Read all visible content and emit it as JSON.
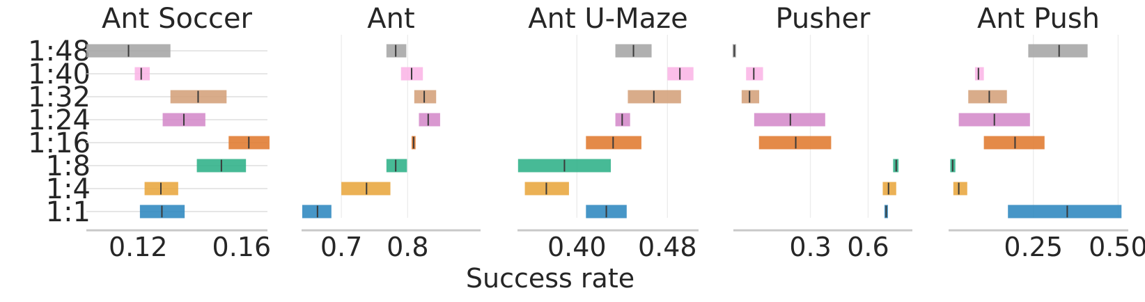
{
  "xlabel": "Success rate",
  "categories": [
    "1:48",
    "1:40",
    "1:32",
    "1:24",
    "1:16",
    "1:8",
    "1:4",
    "1:1"
  ],
  "colors": {
    "1:48": "#a5a5a5",
    "1:40": "#fbb5e6",
    "1:32": "#d4a07a",
    "1:24": "#d48ac9",
    "1:16": "#e07a2f",
    "1:8": "#2eb187",
    "1:4": "#e8a63d",
    "1:1": "#2e87bf"
  },
  "chart_data": [
    {
      "type": "interval",
      "title": "Ant Soccer",
      "xlim": [
        0.1,
        0.17
      ],
      "xticks": [
        0.12,
        0.16
      ],
      "xtick_labels": [
        "0.12",
        "0.16"
      ],
      "show_gridlines": "horizontal",
      "series": [
        {
          "name": "1:48",
          "low": 0.1,
          "mean": 0.1163,
          "high": 0.1325
        },
        {
          "name": "1:40",
          "low": 0.1187,
          "mean": 0.1212,
          "high": 0.1245
        },
        {
          "name": "1:32",
          "low": 0.1325,
          "mean": 0.1432,
          "high": 0.1542
        },
        {
          "name": "1:24",
          "low": 0.1295,
          "mean": 0.1377,
          "high": 0.146
        },
        {
          "name": "1:16",
          "low": 0.155,
          "mean": 0.1628,
          "high": 0.1708
        },
        {
          "name": "1:8",
          "low": 0.1427,
          "mean": 0.1522,
          "high": 0.1617
        },
        {
          "name": "1:4",
          "low": 0.1225,
          "mean": 0.1288,
          "high": 0.1355
        },
        {
          "name": "1:1",
          "low": 0.1207,
          "mean": 0.1292,
          "high": 0.138
        }
      ]
    },
    {
      "type": "interval",
      "title": "Ant",
      "xlim": [
        0.64,
        0.91
      ],
      "xticks": [
        0.7,
        0.8
      ],
      "xtick_labels": [
        "0.7",
        "0.8"
      ],
      "show_gridlines": "vertical",
      "series": [
        {
          "name": "1:48",
          "low": 0.768,
          "mean": 0.782,
          "high": 0.798
        },
        {
          "name": "1:40",
          "low": 0.79,
          "mean": 0.806,
          "high": 0.823
        },
        {
          "name": "1:32",
          "low": 0.81,
          "mean": 0.825,
          "high": 0.843
        },
        {
          "name": "1:24",
          "low": 0.817,
          "mean": 0.831,
          "high": 0.849
        },
        {
          "name": "1:16",
          "low": 0.806,
          "mean": 0.809,
          "high": 0.812
        },
        {
          "name": "1:8",
          "low": 0.768,
          "mean": 0.782,
          "high": 0.799
        },
        {
          "name": "1:4",
          "low": 0.7,
          "mean": 0.738,
          "high": 0.774
        },
        {
          "name": "1:1",
          "low": 0.641,
          "mean": 0.664,
          "high": 0.685
        }
      ]
    },
    {
      "type": "interval",
      "title": "Ant U-Maze",
      "xlim": [
        0.3475,
        0.5075
      ],
      "xticks": [
        0.4,
        0.48
      ],
      "xtick_labels": [
        "0.40",
        "0.48"
      ],
      "show_gridlines": "vertical",
      "series": [
        {
          "name": "1:48",
          "low": 0.434,
          "mean": 0.45,
          "high": 0.466
        },
        {
          "name": "1:40",
          "low": 0.48,
          "mean": 0.491,
          "high": 0.503
        },
        {
          "name": "1:32",
          "low": 0.445,
          "mean": 0.468,
          "high": 0.492
        },
        {
          "name": "1:24",
          "low": 0.434,
          "mean": 0.44,
          "high": 0.447
        },
        {
          "name": "1:16",
          "low": 0.408,
          "mean": 0.432,
          "high": 0.457
        },
        {
          "name": "1:8",
          "low": 0.348,
          "mean": 0.389,
          "high": 0.43
        },
        {
          "name": "1:4",
          "low": 0.354,
          "mean": 0.373,
          "high": 0.393
        },
        {
          "name": "1:1",
          "low": 0.408,
          "mean": 0.426,
          "high": 0.444
        }
      ]
    },
    {
      "type": "interval",
      "title": "Pusher",
      "xlim": [
        -0.1,
        0.83
      ],
      "xticks": [
        0.3,
        0.6
      ],
      "xtick_labels": [
        "0.3",
        "0.6"
      ],
      "show_gridlines": "vertical",
      "series": [
        {
          "name": "1:48",
          "low": -0.1,
          "mean": -0.095,
          "high": -0.09
        },
        {
          "name": "1:40",
          "low": -0.034,
          "mean": 0.006,
          "high": 0.054
        },
        {
          "name": "1:32",
          "low": -0.057,
          "mean": -0.016,
          "high": 0.034
        },
        {
          "name": "1:24",
          "low": 0.008,
          "mean": 0.196,
          "high": 0.377
        },
        {
          "name": "1:16",
          "low": 0.033,
          "mean": 0.224,
          "high": 0.408
        },
        {
          "name": "1:8",
          "low": 0.73,
          "mean": 0.746,
          "high": 0.758
        },
        {
          "name": "1:4",
          "low": 0.676,
          "mean": 0.706,
          "high": 0.746
        },
        {
          "name": "1:1",
          "low": 0.686,
          "mean": 0.694,
          "high": 0.702
        }
      ]
    },
    {
      "type": "interval",
      "title": "Ant Push",
      "xlim": [
        0,
        0.53
      ],
      "xticks": [
        0.25,
        0.5
      ],
      "xtick_labels": [
        "0.25",
        "0.50"
      ],
      "show_gridlines": "vertical",
      "series": [
        {
          "name": "1:48",
          "low": 0.235,
          "mean": 0.326,
          "high": 0.41
        },
        {
          "name": "1:40",
          "low": 0.078,
          "mean": 0.088,
          "high": 0.104
        },
        {
          "name": "1:32",
          "low": 0.058,
          "mean": 0.12,
          "high": 0.172
        },
        {
          "name": "1:24",
          "low": 0.03,
          "mean": 0.135,
          "high": 0.24
        },
        {
          "name": "1:16",
          "low": 0.104,
          "mean": 0.196,
          "high": 0.283
        },
        {
          "name": "1:8",
          "low": 0.005,
          "mean": 0.012,
          "high": 0.02
        },
        {
          "name": "1:4",
          "low": 0.014,
          "mean": 0.03,
          "high": 0.055
        },
        {
          "name": "1:1",
          "low": 0.175,
          "mean": 0.35,
          "high": 0.51
        }
      ]
    }
  ]
}
